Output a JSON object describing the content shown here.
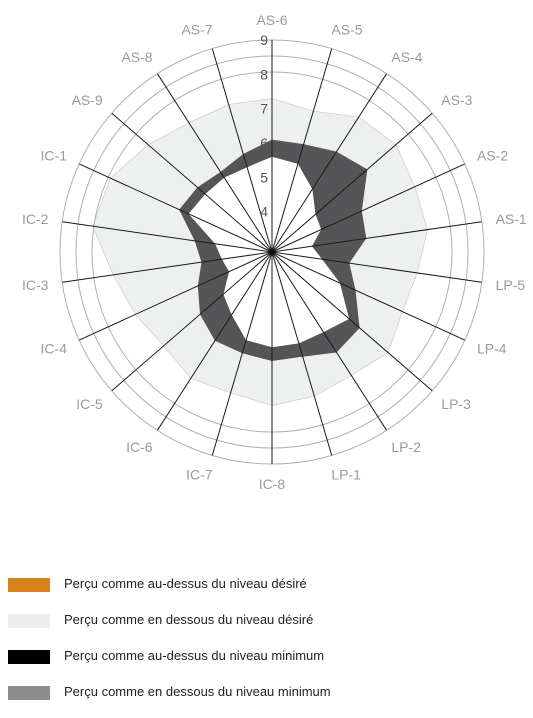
{
  "chart_data": {
    "type": "radar",
    "axes": [
      "AS-6",
      "AS-5",
      "AS-4",
      "AS-3",
      "AS-2",
      "AS-1",
      "LP-5",
      "LP-4",
      "LP-3",
      "LP-2",
      "LP-1",
      "IC-8",
      "IC-7",
      "IC-6",
      "IC-5",
      "IC-4",
      "IC-3",
      "IC-2",
      "IC-1",
      "AS-9",
      "AS-8",
      "AS-7"
    ],
    "ticks": [
      "4",
      "5",
      "6",
      "7",
      "8",
      "9"
    ],
    "rmin": 3,
    "rmax": 9,
    "series": [
      {
        "name": "Perçu comme en dessous du niveau désiré",
        "color": "#eef0f0",
        "low": [
          5.8,
          5.8,
          5.4,
          5.0,
          4.7,
          4.4,
          4.6,
          5.3,
          6.2,
          6.3,
          6.0,
          5.9,
          5.7,
          5.2,
          4.9,
          4.4,
          4.4,
          5.0,
          5.8,
          5.6,
          5.5,
          5.6
        ],
        "high": [
          7.3,
          7.1,
          7.5,
          7.6,
          7.4,
          7.4,
          7.1,
          7.0,
          7.3,
          7.1,
          7.2,
          7.3,
          7.1,
          7.2,
          7.0,
          7.2,
          7.5,
          8.1,
          8.0,
          7.6,
          7.3,
          7.3
        ]
      },
      {
        "name": "Perçu comme en dessous du niveau minimum",
        "color": "#9c9d9f",
        "low": [
          5.7,
          5.6,
          5.2,
          4.8,
          4.5,
          4.1,
          4.4,
          5.1,
          5.9,
          5.7,
          5.7,
          5.7,
          5.6,
          5.1,
          4.8,
          4.3,
          4.3,
          4.6,
          5.6,
          5.5,
          5.4,
          5.5
        ],
        "high": [
          5.8,
          5.8,
          5.4,
          5.0,
          4.7,
          4.4,
          4.6,
          5.3,
          6.2,
          6.3,
          6.0,
          5.9,
          5.7,
          5.2,
          4.9,
          4.4,
          4.4,
          5.0,
          5.8,
          5.6,
          5.5,
          5.6
        ]
      },
      {
        "name": "Perçu comme au-dessus du niveau minimum",
        "color": "#555558",
        "low": [
          5.6,
          5.5,
          5.0,
          4.5,
          4.4,
          4.0,
          4.3,
          5.0,
          5.8,
          5.6,
          5.6,
          5.6,
          5.5,
          5.0,
          4.7,
          4.2,
          4.3,
          4.5,
          5.5,
          5.4,
          5.4,
          5.4
        ],
        "high": [
          6.1,
          6.1,
          6.3,
          6.5,
          5.7,
          5.6,
          5.1,
          5.5,
          6.2,
          6.3,
          6.0,
          6.0,
          5.9,
          5.9,
          5.6,
          5.2,
          4.9,
          5.1,
          5.8,
          5.7,
          5.6,
          5.8
        ]
      }
    ],
    "legend": [
      {
        "label": "Perçu comme au-dessus du niveau désiré",
        "color": "#d6811b"
      },
      {
        "label": "Perçu comme en dessous du niveau désiré",
        "color": "#eeeeee"
      },
      {
        "label": "Perçu comme au-dessus du niveau minimum",
        "color": "#000000"
      },
      {
        "label": "Perçu comme en dessous du niveau minimum",
        "color": "#8d8d8f"
      }
    ],
    "colors": {
      "axis": "#1a1a1a",
      "ring": "#b0b0b0",
      "label": "#9a9a9a",
      "tick": "#555555"
    }
  }
}
